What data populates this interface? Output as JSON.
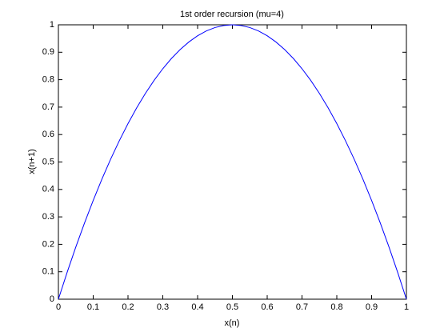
{
  "chart_data": {
    "type": "line",
    "title": "1st order recursion (mu=4)",
    "xlabel": "x(n)",
    "ylabel": "x(n+1)",
    "x": [
      0,
      0.025,
      0.05,
      0.075,
      0.1,
      0.125,
      0.15,
      0.175,
      0.2,
      0.225,
      0.25,
      0.275,
      0.3,
      0.325,
      0.35,
      0.375,
      0.4,
      0.425,
      0.45,
      0.475,
      0.5,
      0.525,
      0.55,
      0.575,
      0.6,
      0.625,
      0.65,
      0.675,
      0.7,
      0.725,
      0.75,
      0.775,
      0.8,
      0.825,
      0.85,
      0.875,
      0.9,
      0.925,
      0.95,
      0.975,
      1
    ],
    "series": [
      {
        "color": "#0000ff",
        "values": [
          0,
          0.0975,
          0.19,
          0.2775,
          0.36,
          0.4375,
          0.51,
          0.5775,
          0.64,
          0.6975,
          0.75,
          0.7975,
          0.84,
          0.8775,
          0.91,
          0.9375,
          0.96,
          0.9775,
          0.99,
          0.9975,
          1,
          0.9975,
          0.99,
          0.9775,
          0.96,
          0.9375,
          0.91,
          0.8775,
          0.84,
          0.7975,
          0.75,
          0.6975,
          0.64,
          0.5775,
          0.51,
          0.4375,
          0.36,
          0.2775,
          0.19,
          0.0975,
          0
        ]
      }
    ],
    "xlim": [
      0,
      1
    ],
    "ylim": [
      0,
      1
    ],
    "xticks": [
      0,
      0.1,
      0.2,
      0.3,
      0.4,
      0.5,
      0.6,
      0.7,
      0.8,
      0.9,
      1
    ],
    "yticks": [
      0,
      0.1,
      0.2,
      0.3,
      0.4,
      0.5,
      0.6,
      0.7,
      0.8,
      0.9,
      1
    ],
    "grid": false
  }
}
